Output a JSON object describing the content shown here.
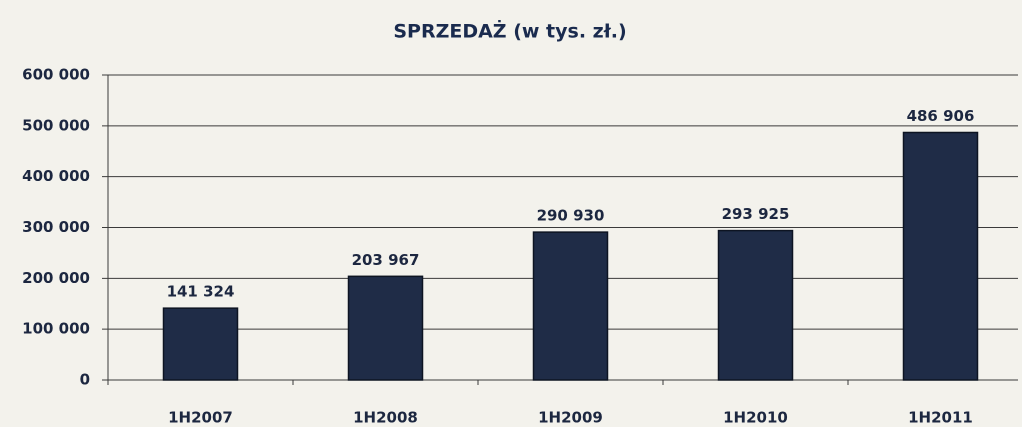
{
  "chart_data": {
    "type": "bar",
    "title": "SPRZEDAŻ (w tys. zł.)",
    "categories": [
      "1H2007",
      "1H2008",
      "1H2009",
      "1H2010",
      "1H2011"
    ],
    "values": [
      141324,
      203967,
      290930,
      293925,
      486906
    ],
    "value_labels": [
      "141 324",
      "203 967",
      "290 930",
      "293 925",
      "486 906"
    ],
    "color": "#1f2c47",
    "ylim": [
      0,
      600000
    ],
    "yticks": [
      0,
      {
        "value": 100000,
        "label": "100 000"
      },
      {
        "value": 200000,
        "label": "200 000"
      },
      {
        "value": 300000,
        "label": "300 000"
      },
      {
        "value": 400000,
        "label": "400 000"
      },
      {
        "value": 500000,
        "label": "500 000"
      },
      {
        "value": 600000,
        "label": "600 000"
      }
    ],
    "grid": true
  }
}
